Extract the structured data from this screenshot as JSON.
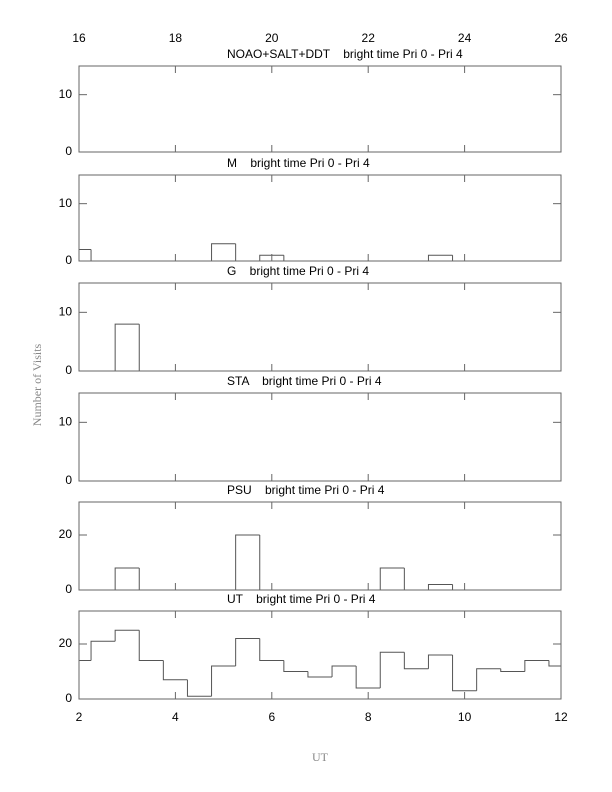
{
  "ylabel": "Number of Visits",
  "xlabel": "UT",
  "chart_data": [
    {
      "type": "histogram",
      "title": "NOAO+SALT+DDT    bright time Pri 0 - Pri 4",
      "bins": [
        2,
        2.25,
        2.75,
        3.25,
        3.75,
        4.25,
        4.75,
        5.25,
        5.75,
        6.25,
        6.75,
        7.25,
        7.75,
        8.25,
        8.75,
        9.25,
        9.75,
        10.25,
        10.75,
        11.25,
        11.75,
        12
      ],
      "counts": [
        0,
        0,
        0,
        0,
        0,
        0,
        0,
        0,
        0,
        0,
        0,
        0,
        0,
        0,
        0,
        0,
        0,
        0,
        0,
        0,
        0
      ],
      "xlim": [
        2,
        12
      ],
      "x2lim": [
        16,
        26
      ],
      "x2ticks": [
        16,
        18,
        20,
        22,
        24,
        26
      ],
      "ylim": [
        0,
        15
      ],
      "yticks": [
        0,
        10
      ],
      "color": "#555555"
    },
    {
      "type": "histogram",
      "title": "M    bright time Pri 0 - Pri 4",
      "bins": [
        2,
        2.25,
        2.75,
        3.25,
        3.75,
        4.25,
        4.75,
        5.25,
        5.75,
        6.25,
        6.75,
        7.25,
        7.75,
        8.25,
        8.75,
        9.25,
        9.75,
        10.25,
        10.75,
        11.25,
        11.75,
        12
      ],
      "counts": [
        2,
        0,
        0,
        0,
        0,
        0,
        3,
        0,
        1,
        0,
        0,
        0,
        0,
        0,
        0,
        1,
        0,
        0,
        0,
        0,
        0
      ],
      "xlim": [
        2,
        12
      ],
      "ylim": [
        0,
        15
      ],
      "yticks": [
        0,
        10
      ],
      "color": "#555555"
    },
    {
      "type": "histogram",
      "title": "G    bright time Pri 0 - Pri 4",
      "bins": [
        2,
        2.25,
        2.75,
        3.25,
        3.75,
        4.25,
        4.75,
        5.25,
        5.75,
        6.25,
        6.75,
        7.25,
        7.75,
        8.25,
        8.75,
        9.25,
        9.75,
        10.25,
        10.75,
        11.25,
        11.75,
        12
      ],
      "counts": [
        0,
        0,
        8,
        0,
        0,
        0,
        0,
        0,
        0,
        0,
        0,
        0,
        0,
        0,
        0,
        0,
        0,
        0,
        0,
        0,
        0
      ],
      "xlim": [
        2,
        12
      ],
      "ylim": [
        0,
        15
      ],
      "yticks": [
        0,
        10
      ],
      "color": "#555555"
    },
    {
      "type": "histogram",
      "title": "STA    bright time Pri 0 - Pri 4",
      "bins": [
        2,
        2.25,
        2.75,
        3.25,
        3.75,
        4.25,
        4.75,
        5.25,
        5.75,
        6.25,
        6.75,
        7.25,
        7.75,
        8.25,
        8.75,
        9.25,
        9.75,
        10.25,
        10.75,
        11.25,
        11.75,
        12
      ],
      "counts": [
        0,
        0,
        0,
        0,
        0,
        0,
        0,
        0,
        0,
        0,
        0,
        0,
        0,
        0,
        0,
        0,
        0,
        0,
        0,
        0,
        0
      ],
      "xlim": [
        2,
        12
      ],
      "ylim": [
        0,
        15
      ],
      "yticks": [
        0,
        10
      ],
      "color": "#555555"
    },
    {
      "type": "histogram",
      "title": "PSU    bright time Pri 0 - Pri 4",
      "bins": [
        2,
        2.25,
        2.75,
        3.25,
        3.75,
        4.25,
        4.75,
        5.25,
        5.75,
        6.25,
        6.75,
        7.25,
        7.75,
        8.25,
        8.75,
        9.25,
        9.75,
        10.25,
        10.75,
        11.25,
        11.75,
        12
      ],
      "counts": [
        0,
        0,
        8,
        0,
        0,
        0,
        0,
        20,
        0,
        0,
        0,
        0,
        0,
        8,
        0,
        2,
        0,
        0,
        0,
        0,
        0
      ],
      "xlim": [
        2,
        12
      ],
      "ylim": [
        0,
        32
      ],
      "yticks": [
        0,
        20
      ],
      "color": "#555555"
    },
    {
      "type": "histogram",
      "title": "UT    bright time Pri 0 - Pri 4",
      "bins": [
        2,
        2.25,
        2.75,
        3.25,
        3.75,
        4.25,
        4.75,
        5.25,
        5.75,
        6.25,
        6.75,
        7.25,
        7.75,
        8.25,
        8.75,
        9.25,
        9.75,
        10.25,
        10.75,
        11.25,
        11.75,
        12
      ],
      "counts": [
        14,
        21,
        25,
        14,
        7,
        1,
        12,
        22,
        14,
        10,
        8,
        12,
        4,
        17,
        11,
        16,
        3,
        11,
        10,
        14,
        12
      ],
      "xlim": [
        2,
        12
      ],
      "xticks": [
        2,
        4,
        6,
        8,
        10,
        12
      ],
      "ylim": [
        0,
        32
      ],
      "yticks": [
        0,
        20
      ],
      "color": "#555555"
    }
  ]
}
